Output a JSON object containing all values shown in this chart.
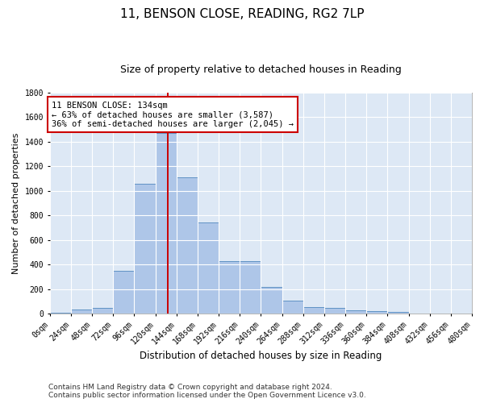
{
  "title": "11, BENSON CLOSE, READING, RG2 7LP",
  "subtitle": "Size of property relative to detached houses in Reading",
  "xlabel": "Distribution of detached houses by size in Reading",
  "ylabel": "Number of detached properties",
  "footer_line1": "Contains HM Land Registry data © Crown copyright and database right 2024.",
  "footer_line2": "Contains public sector information licensed under the Open Government Licence v3.0.",
  "annotation_line1": "11 BENSON CLOSE: 134sqm",
  "annotation_line2": "← 63% of detached houses are smaller (3,587)",
  "annotation_line3": "36% of semi-detached houses are larger (2,045) →",
  "bar_edges": [
    0,
    24,
    48,
    72,
    96,
    120,
    144,
    168,
    192,
    216,
    240,
    264,
    288,
    312,
    336,
    360,
    384,
    408,
    432,
    456,
    480
  ],
  "bar_heights": [
    10,
    35,
    50,
    350,
    1060,
    1470,
    1110,
    745,
    430,
    430,
    220,
    110,
    55,
    45,
    30,
    20,
    15,
    5,
    2,
    1
  ],
  "bar_color": "#aec6e8",
  "bar_edge_color": "#5a8fc2",
  "vline_x": 134,
  "vline_color": "#cc0000",
  "ylim": [
    0,
    1800
  ],
  "yticks": [
    0,
    200,
    400,
    600,
    800,
    1000,
    1200,
    1400,
    1600,
    1800
  ],
  "background_color": "#dde8f5",
  "grid_color": "#ffffff",
  "annotation_box_color": "#cc0000",
  "title_fontsize": 11,
  "subtitle_fontsize": 9,
  "xlabel_fontsize": 8.5,
  "ylabel_fontsize": 8,
  "tick_fontsize": 7,
  "annotation_fontsize": 7.5,
  "footer_fontsize": 6.5
}
